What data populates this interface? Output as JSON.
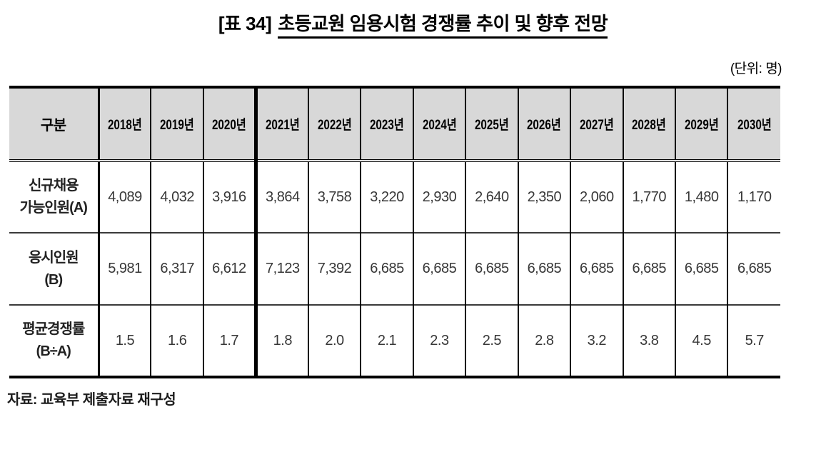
{
  "title": {
    "prefix": "[표 34]",
    "text": "초등교원 임용시험 경쟁률 추이 및 향후 전망"
  },
  "unit_label": "(단위: 명)",
  "source": "자료: 교육부 제출자료 재구성",
  "table": {
    "corner_header": "구분",
    "year_headers": [
      "2018년",
      "2019년",
      "2020년",
      "2021년",
      "2022년",
      "2023년",
      "2024년",
      "2025년",
      "2026년",
      "2027년",
      "2028년",
      "2029년",
      "2030년"
    ],
    "rows": [
      {
        "label": "신규채용\n가능인원(A)",
        "values": [
          "4,089",
          "4,032",
          "3,916",
          "3,864",
          "3,758",
          "3,220",
          "2,930",
          "2,640",
          "2,350",
          "2,060",
          "1,770",
          "1,480",
          "1,170"
        ]
      },
      {
        "label": "응시인원\n(B)",
        "values": [
          "5,981",
          "6,317",
          "6,612",
          "7,123",
          "7,392",
          "6,685",
          "6,685",
          "6,685",
          "6,685",
          "6,685",
          "6,685",
          "6,685",
          "6,685"
        ]
      },
      {
        "label": "평균경쟁률\n(B÷A)",
        "values": [
          "1.5",
          "1.6",
          "1.7",
          "1.8",
          "2.0",
          "2.1",
          "2.3",
          "2.5",
          "2.8",
          "3.2",
          "3.8",
          "4.5",
          "5.7"
        ]
      }
    ]
  }
}
